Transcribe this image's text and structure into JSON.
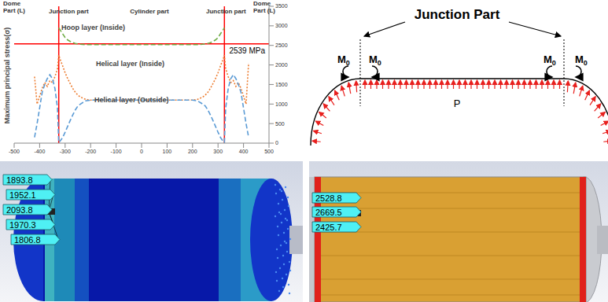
{
  "chart_data": {
    "type": "line",
    "y_label": "Maximum principal stress(σ)",
    "xlim": [
      -500,
      500
    ],
    "xticks": [
      -500,
      -400,
      -300,
      -200,
      -100,
      0,
      100,
      200,
      300,
      400,
      500
    ],
    "ylim": [
      0,
      3500
    ],
    "yticks": [
      0,
      500,
      1000,
      1500,
      2000,
      2500,
      3000,
      3500
    ],
    "grid": false,
    "x": [
      -420,
      -410,
      -400,
      -390,
      -380,
      -370,
      -360,
      -350,
      -340,
      -330,
      -325,
      -320,
      -310,
      -300,
      -290,
      -280,
      -270,
      -260,
      -250,
      -240,
      -220,
      -200,
      -100,
      0,
      100,
      200,
      220,
      240,
      250,
      260,
      270,
      280,
      290,
      300,
      310,
      320,
      325,
      330,
      340,
      350,
      360,
      370,
      380,
      390,
      400,
      410,
      420
    ],
    "series": [
      {
        "name": "Hoop layer (Inside)",
        "color": "#70ad47",
        "line_style": "dashed",
        "values": [
          null,
          null,
          null,
          null,
          null,
          null,
          null,
          null,
          null,
          null,
          2950,
          2900,
          2800,
          2700,
          2640,
          2600,
          2570,
          2550,
          2540,
          2530,
          2520,
          2520,
          2520,
          2520,
          2520,
          2520,
          2520,
          2530,
          2540,
          2550,
          2570,
          2600,
          2640,
          2700,
          2800,
          2900,
          2950,
          null,
          null,
          null,
          null,
          null,
          null,
          null,
          null,
          null,
          null
        ]
      },
      {
        "name": "Helical layer (Inside)",
        "color": "#ed7d31",
        "line_style": "dotted",
        "values": [
          1700,
          1000,
          1200,
          1400,
          1550,
          1450,
          1600,
          1550,
          1700,
          1900,
          2250,
          2150,
          1980,
          1800,
          1650,
          1520,
          1400,
          1300,
          1230,
          1180,
          1120,
          1100,
          1100,
          1100,
          1100,
          1100,
          1120,
          1180,
          1230,
          1300,
          1400,
          1520,
          1650,
          1800,
          1980,
          2150,
          2250,
          1900,
          1700,
          1550,
          1600,
          1450,
          1550,
          1400,
          1200,
          1000,
          2050
        ]
      },
      {
        "name": "Helical layer (Outside)",
        "color": "#5b9bd5",
        "line_style": "dashed",
        "values": [
          150,
          500,
          900,
          1300,
          1500,
          1650,
          1750,
          1650,
          1400,
          900,
          20,
          50,
          140,
          280,
          430,
          580,
          720,
          850,
          950,
          1000,
          1080,
          1100,
          1100,
          1100,
          1100,
          1100,
          1080,
          1000,
          950,
          850,
          720,
          580,
          430,
          280,
          140,
          50,
          20,
          900,
          1400,
          1650,
          1750,
          1650,
          1500,
          1300,
          900,
          500,
          150
        ]
      }
    ],
    "reference_lines": [
      {
        "axis": "y",
        "value": 2539,
        "label": "2539 MPa",
        "color": "#ff0000"
      },
      {
        "axis": "x",
        "value": -325,
        "color": "#ff0000"
      },
      {
        "axis": "x",
        "value": 325,
        "color": "#ff0000"
      }
    ],
    "annotations": [
      "Dome Part (L)",
      "Junction part",
      "Cylinder part",
      "Junction part",
      "Dome Part (L)"
    ]
  },
  "diagram": {
    "title": "Junction Part",
    "moment_labels": [
      {
        "symbol": "M",
        "subscript": "0"
      },
      {
        "symbol": "M",
        "subscript": "0"
      },
      {
        "symbol": "M",
        "subscript": "0"
      },
      {
        "symbol": "M",
        "subscript": "0"
      }
    ],
    "pressure_label": "P"
  },
  "contour_plots": [
    {
      "labels": [
        1893.8,
        1952.1,
        2093.8,
        1970.3,
        1806.8
      ]
    },
    {
      "labels": [
        2528.8,
        2669.5,
        2425.7
      ]
    }
  ]
}
